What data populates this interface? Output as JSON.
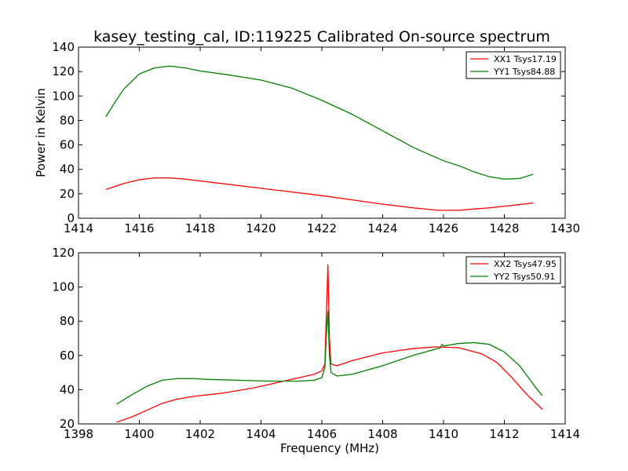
{
  "figure": {
    "title": "kasey_testing_cal, ID:119225 Calibrated On-source spectrum"
  },
  "chart_data": [
    {
      "type": "line",
      "xlabel": "",
      "ylabel": "Power in Kelvin",
      "xlim": [
        1414,
        1430
      ],
      "ylim": [
        0,
        140
      ],
      "xticks": [
        1414,
        1416,
        1418,
        1420,
        1422,
        1424,
        1426,
        1428,
        1430
      ],
      "yticks": [
        0,
        20,
        40,
        60,
        80,
        100,
        120,
        140
      ],
      "grid": false,
      "legend_position": "top-right",
      "series": [
        {
          "name": "XX1 Tsys17.19",
          "color": "#ff0000",
          "x": [
            1414.9,
            1415.5,
            1416.0,
            1416.5,
            1417.0,
            1417.5,
            1418.0,
            1419.0,
            1420.0,
            1421.0,
            1422.0,
            1423.0,
            1424.0,
            1425.0,
            1425.8,
            1426.5,
            1427.0,
            1427.5,
            1428.0,
            1428.5,
            1428.95
          ],
          "y": [
            23.5,
            28.5,
            31.5,
            33.0,
            33.0,
            32.0,
            30.5,
            27.5,
            24.5,
            21.5,
            18.5,
            15.0,
            11.5,
            8.5,
            6.5,
            6.5,
            7.5,
            8.5,
            9.8,
            11.2,
            12.5
          ]
        },
        {
          "name": "YY1 Tsys84.88",
          "color": "#008000",
          "x": [
            1414.9,
            1415.2,
            1415.5,
            1416.0,
            1416.5,
            1417.0,
            1417.5,
            1418.0,
            1419.0,
            1420.0,
            1421.0,
            1422.0,
            1423.0,
            1424.0,
            1425.0,
            1426.0,
            1426.5,
            1427.0,
            1427.5,
            1428.0,
            1428.5,
            1428.95
          ],
          "y": [
            83,
            95,
            106,
            118,
            123,
            124.5,
            123,
            120.5,
            117,
            113,
            106.5,
            96.5,
            85,
            71.5,
            58,
            47,
            43,
            38,
            34,
            32,
            32.5,
            36
          ]
        }
      ]
    },
    {
      "type": "line",
      "xlabel": "Frequency (MHz)",
      "ylabel": "",
      "xlim": [
        1398,
        1414
      ],
      "ylim": [
        20,
        120
      ],
      "xticks": [
        1398,
        1400,
        1402,
        1404,
        1406,
        1408,
        1410,
        1412,
        1414
      ],
      "yticks": [
        20,
        40,
        60,
        80,
        100,
        120
      ],
      "grid": false,
      "legend_position": "top-right",
      "series": [
        {
          "name": "XX2 Tsys47.95",
          "color": "#ff0000",
          "x": [
            1399.25,
            1399.75,
            1400.25,
            1400.75,
            1401.25,
            1401.75,
            1402.25,
            1402.75,
            1403.25,
            1403.75,
            1404.25,
            1404.75,
            1405.25,
            1405.75,
            1406.0,
            1406.1,
            1406.15,
            1406.2,
            1406.25,
            1406.3,
            1406.5,
            1407.0,
            1408.0,
            1409.0,
            1409.75,
            1410.5,
            1411.25,
            1411.75,
            1412.25,
            1412.75,
            1413.25
          ],
          "y": [
            21,
            24,
            28,
            32,
            34.5,
            36,
            37,
            38,
            39.5,
            41,
            43,
            45,
            47,
            49,
            51,
            55,
            85,
            113,
            70,
            55,
            54,
            57,
            61.5,
            64,
            65,
            64.5,
            61,
            56,
            47,
            37,
            28.5
          ]
        },
        {
          "name": "YY2 Tsys50.91",
          "color": "#008000",
          "x": [
            1399.25,
            1399.75,
            1400.25,
            1400.75,
            1401.25,
            1401.75,
            1402.25,
            1403.25,
            1404.25,
            1405.25,
            1405.75,
            1406.0,
            1406.1,
            1406.15,
            1406.2,
            1406.25,
            1406.3,
            1406.5,
            1407.0,
            1408.0,
            1409.0,
            1409.9,
            1409.95,
            1410.0,
            1410.5,
            1411.0,
            1411.5,
            1412.0,
            1412.5,
            1413.0,
            1413.25
          ],
          "y": [
            31.5,
            37,
            42,
            45.5,
            46.5,
            46.5,
            46,
            45.5,
            45,
            45,
            45.5,
            47,
            53,
            72,
            86,
            60,
            50,
            48,
            49,
            54,
            60,
            64.5,
            66.5,
            65.5,
            67,
            67.5,
            66.5,
            62,
            54,
            42,
            36.5
          ]
        }
      ]
    }
  ]
}
